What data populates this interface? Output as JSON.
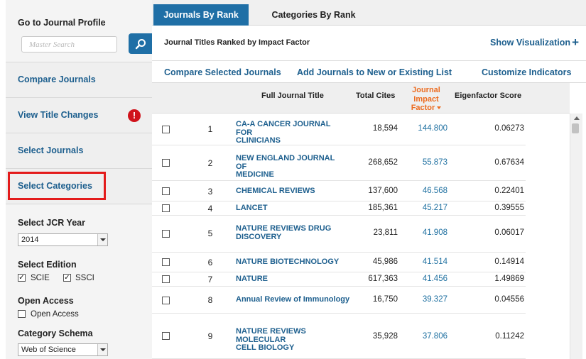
{
  "sidebar": {
    "profile_title": "Go to Journal Profile",
    "search_placeholder": "Master Search",
    "items": [
      {
        "label": "Compare Journals"
      },
      {
        "label": "View Title Changes"
      },
      {
        "label": "Select Journals"
      },
      {
        "label": "Select Categories"
      }
    ],
    "jcr_year_label": "Select JCR Year",
    "jcr_year_value": "2014",
    "edition_label": "Select Edition",
    "edition_scie": "SCIE",
    "edition_ssci": "SSCI",
    "open_access_label": "Open Access",
    "open_access_option": "Open Access",
    "schema_label": "Category Schema",
    "schema_value": "Web of Science"
  },
  "tabs": {
    "active": "Journals By Rank",
    "inactive": "Categories By Rank"
  },
  "subheader": {
    "title": "Journal Titles Ranked by Impact Factor",
    "show_visualization": "Show Visualization"
  },
  "actions": {
    "compare": "Compare Selected Journals",
    "add": "Add Journals to New or Existing List",
    "customize": "Customize Indicators"
  },
  "table": {
    "col_title": "Full Journal Title",
    "col_cites": "Total Cites",
    "col_jif_1": "Journal",
    "col_jif_2": "Impact",
    "col_jif_3": "Factor",
    "col_eig": "Eigenfactor Score",
    "rows": [
      {
        "rank": "1",
        "title_1": "CA-A CANCER JOURNAL FOR",
        "title_2": "CLINICIANS",
        "cites": "18,594",
        "jif": "144.800",
        "eig": "0.06273"
      },
      {
        "rank": "2",
        "title_1": "NEW ENGLAND JOURNAL OF",
        "title_2": "MEDICINE",
        "cites": "268,652",
        "jif": "55.873",
        "eig": "0.67634"
      },
      {
        "rank": "3",
        "title_1": "CHEMICAL REVIEWS",
        "title_2": "",
        "cites": "137,600",
        "jif": "46.568",
        "eig": "0.22401"
      },
      {
        "rank": "4",
        "title_1": "LANCET",
        "title_2": "",
        "cites": "185,361",
        "jif": "45.217",
        "eig": "0.39555"
      },
      {
        "rank": "5",
        "title_1": "NATURE REVIEWS DRUG",
        "title_2": "DISCOVERY",
        "cites": "23,811",
        "jif": "41.908",
        "eig": "0.06017"
      },
      {
        "rank": "6",
        "title_1": "NATURE BIOTECHNOLOGY",
        "title_2": "",
        "cites": "45,986",
        "jif": "41.514",
        "eig": "0.14914"
      },
      {
        "rank": "7",
        "title_1": "NATURE",
        "title_2": "",
        "cites": "617,363",
        "jif": "41.456",
        "eig": "1.49869"
      },
      {
        "rank": "8",
        "title_1": "Annual Review of Immunology",
        "title_2": "",
        "cites": "16,750",
        "jif": "39.327",
        "eig": "0.04556"
      },
      {
        "rank": "9",
        "title_1": "NATURE REVIEWS MOLECULAR",
        "title_2": "CELL BIOLOGY",
        "cites": "35,928",
        "jif": "37.806",
        "eig": "0.11242"
      }
    ]
  },
  "colors": {
    "primary_blue": "#1f6fa6",
    "link_blue": "#1d5f8e",
    "highlight_red": "#e31b1b",
    "sort_orange": "#ec6b1f"
  }
}
